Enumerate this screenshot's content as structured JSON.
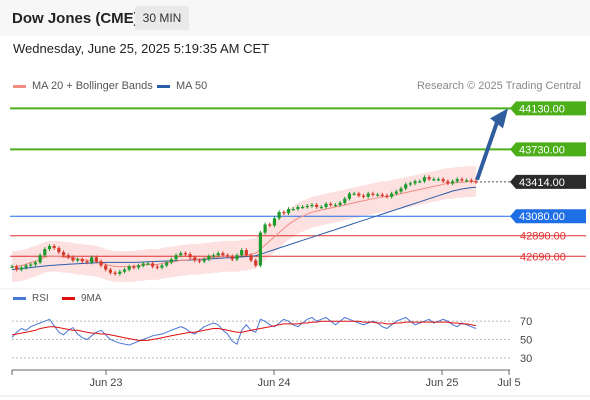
{
  "header": {
    "title": "Dow Jones (CME)",
    "timeframe": "30 MIN"
  },
  "datetime": "Wednesday, June 25, 2025 5:19:35 AM CET",
  "legend": {
    "ma20_label": "MA 20 + Bollinger Bands",
    "ma20_color": "#f28b82",
    "ma50_label": "MA 50",
    "ma50_color": "#2c5ea8"
  },
  "credit": "Research © 2025 Trading Central",
  "rsi_legend": {
    "rsi_label": "RSI",
    "rsi_color": "#4a78d6",
    "ma9_label": "9MA",
    "ma9_color": "#e01010"
  },
  "chart_data": [
    {
      "type": "candlestick",
      "ylim": [
        42420,
        44250
      ],
      "x_ticks": [
        "Jun 23",
        "Jun 24",
        "Jun 25",
        "Jul 5"
      ],
      "current_price": "43414.00",
      "levels": [
        {
          "value": 44130,
          "label": "44130.00",
          "kind": "resistance",
          "color": "#4caf1a"
        },
        {
          "value": 43730,
          "label": "43730.00",
          "kind": "resistance",
          "color": "#4caf1a"
        },
        {
          "value": 43080,
          "label": "43080.00",
          "kind": "pivot",
          "color": "#1e6ee6"
        },
        {
          "value": 42890,
          "label": "42890.00",
          "kind": "support",
          "color": "#e03030"
        },
        {
          "value": 42690,
          "label": "42690.00",
          "kind": "support",
          "color": "#e03030"
        }
      ],
      "forecast": {
        "from": 43414,
        "to": 44130,
        "color": "#2f5d9e"
      },
      "price_path": [
        42590,
        42560,
        42580,
        42600,
        42610,
        42630,
        42700,
        42760,
        42790,
        42770,
        42730,
        42700,
        42680,
        42650,
        42660,
        42640,
        42630,
        42680,
        42640,
        42600,
        42560,
        42530,
        42520,
        42540,
        42560,
        42590,
        42580,
        42600,
        42620,
        42620,
        42590,
        42580,
        42600,
        42630,
        42660,
        42700,
        42720,
        42710,
        42680,
        42650,
        42640,
        42660,
        42690,
        42700,
        42720,
        42700,
        42690,
        42660,
        42700,
        42750,
        42700,
        42650,
        42600,
        42920,
        43000,
        42990,
        43060,
        43120,
        43110,
        43150,
        43150,
        43170,
        43170,
        43180,
        43190,
        43170,
        43170,
        43200,
        43190,
        43190,
        43210,
        43250,
        43300,
        43300,
        43280,
        43270,
        43300,
        43290,
        43290,
        43280,
        43270,
        43300,
        43320,
        43350,
        43390,
        43400,
        43420,
        43420,
        43460,
        43440,
        43440,
        43440,
        43420,
        43400,
        43420,
        43440,
        43430,
        43430,
        43420,
        43414
      ],
      "ma20": [
        42590,
        42590,
        42600,
        42610,
        42630,
        42640,
        42660,
        42680,
        42690,
        42690,
        42690,
        42680,
        42680,
        42670,
        42660,
        42660,
        42650,
        42650,
        42640,
        42630,
        42610,
        42600,
        42590,
        42590,
        42590,
        42590,
        42590,
        42600,
        42600,
        42610,
        42610,
        42610,
        42620,
        42630,
        42630,
        42640,
        42650,
        42650,
        42660,
        42660,
        42660,
        42670,
        42670,
        42680,
        42680,
        42690,
        42690,
        42690,
        42690,
        42700,
        42700,
        42710,
        42720,
        42760,
        42800,
        42840,
        42880,
        42920,
        42960,
        43000,
        43030,
        43060,
        43080,
        43100,
        43120,
        43130,
        43140,
        43150,
        43160,
        43170,
        43180,
        43190,
        43200,
        43210,
        43220,
        43230,
        43240,
        43250,
        43260,
        43270,
        43270,
        43280,
        43290,
        43300,
        43310,
        43320,
        43330,
        43340,
        43350,
        43360,
        43370,
        43380,
        43390,
        43400,
        43400,
        43410,
        43410,
        43415,
        43418,
        43418
      ],
      "ma50": [
        42560,
        42565,
        42570,
        42575,
        42580,
        42585,
        42590,
        42595,
        42600,
        42603,
        42606,
        42609,
        42612,
        42615,
        42618,
        42620,
        42622,
        42624,
        42626,
        42628,
        42630,
        42630,
        42630,
        42630,
        42630,
        42630,
        42630,
        42632,
        42634,
        42636,
        42638,
        42640,
        42642,
        42644,
        42646,
        42648,
        42650,
        42652,
        42654,
        42656,
        42658,
        42660,
        42663,
        42666,
        42669,
        42672,
        42675,
        42678,
        42681,
        42684,
        42687,
        42690,
        42695,
        42710,
        42725,
        42740,
        42755,
        42770,
        42785,
        42800,
        42815,
        42830,
        42845,
        42860,
        42875,
        42890,
        42905,
        42920,
        42935,
        42950,
        42965,
        42980,
        42995,
        43010,
        43025,
        43040,
        43055,
        43070,
        43085,
        43100,
        43115,
        43130,
        43145,
        43160,
        43175,
        43190,
        43205,
        43220,
        43235,
        43250,
        43265,
        43280,
        43295,
        43310,
        43325,
        43335,
        43345,
        43352,
        43358,
        43362
      ],
      "bb_width": 150
    },
    {
      "type": "line",
      "title": "RSI",
      "ylim": [
        20,
        80
      ],
      "y_ticks": [
        70,
        50,
        30
      ],
      "series": [
        {
          "name": "RSI",
          "values": [
            52,
            58,
            62,
            60,
            64,
            66,
            68,
            70,
            72,
            65,
            58,
            55,
            60,
            63,
            56,
            52,
            50,
            54,
            58,
            60,
            55,
            50,
            48,
            46,
            45,
            44,
            46,
            48,
            50,
            52,
            54,
            55,
            56,
            58,
            60,
            62,
            64,
            62,
            58,
            56,
            60,
            64,
            66,
            68,
            66,
            60,
            56,
            48,
            45,
            60,
            66,
            60,
            58,
            72,
            70,
            66,
            64,
            68,
            72,
            70,
            66,
            64,
            68,
            72,
            74,
            70,
            72,
            74,
            70,
            66,
            70,
            74,
            72,
            70,
            68,
            66,
            68,
            70,
            68,
            64,
            62,
            66,
            70,
            72,
            74,
            70,
            66,
            68,
            70,
            72,
            68,
            70,
            72,
            70,
            66,
            64,
            68,
            66,
            64,
            62
          ]
        },
        {
          "name": "9MA",
          "values": [
            55,
            56,
            57,
            58,
            59,
            60,
            62,
            63,
            64,
            64,
            63,
            62,
            61,
            60,
            60,
            59,
            58,
            57,
            57,
            56,
            56,
            55,
            54,
            53,
            52,
            51,
            50,
            49,
            49,
            49,
            50,
            51,
            52,
            53,
            54,
            55,
            56,
            57,
            58,
            58,
            59,
            60,
            61,
            62,
            62,
            61,
            60,
            59,
            58,
            58,
            59,
            60,
            61,
            62,
            63,
            64,
            65,
            66,
            67,
            67,
            67,
            67,
            68,
            68,
            69,
            69,
            70,
            70,
            70,
            70,
            70,
            70,
            70,
            70,
            70,
            69,
            69,
            69,
            68,
            68,
            67,
            67,
            68,
            68,
            69,
            69,
            69,
            69,
            69,
            69,
            69,
            69,
            69,
            69,
            68,
            68,
            67,
            67,
            66,
            65
          ]
        }
      ]
    }
  ]
}
